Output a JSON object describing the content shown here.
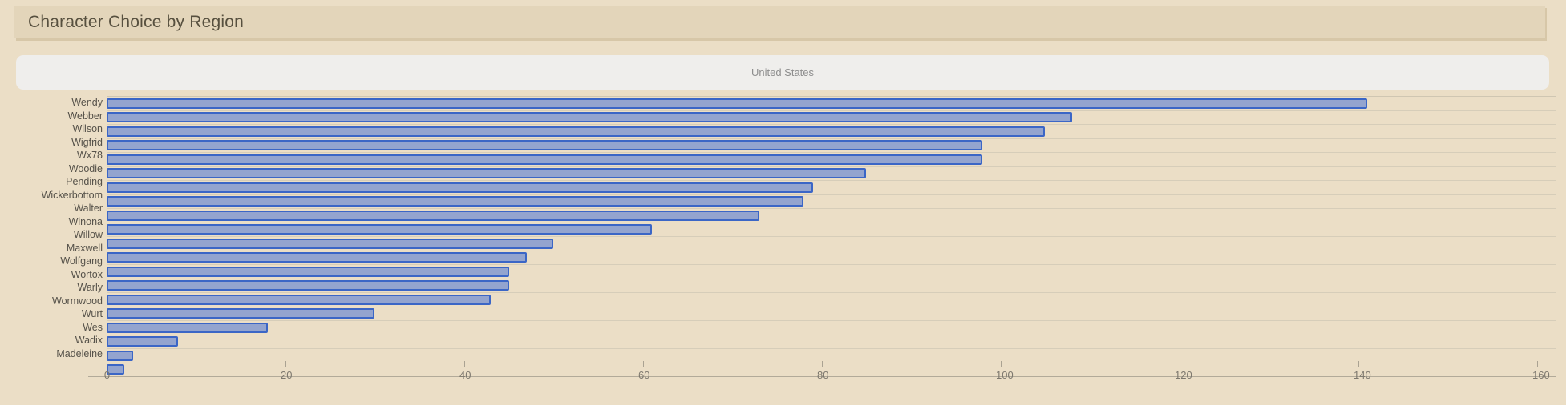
{
  "header": {
    "title": "Character Choice by Region"
  },
  "region_tab": {
    "label": "United States"
  },
  "chart_data": {
    "type": "bar",
    "orientation": "horizontal",
    "title": "Character Choice by Region",
    "group_label": "United States",
    "categories": [
      "Wendy",
      "Webber",
      "Wilson",
      "Wigfrid",
      "Wx78",
      "Woodie",
      "Pending",
      "Wickerbottom",
      "Walter",
      "Winona",
      "Willow",
      "Maxwell",
      "Wolfgang",
      "Wortox",
      "Warly",
      "Wormwood",
      "Wurt",
      "Wes",
      "Wadix",
      "Madeleine"
    ],
    "values": [
      141,
      108,
      105,
      98,
      98,
      85,
      79,
      78,
      73,
      61,
      50,
      47,
      45,
      45,
      43,
      30,
      18,
      8,
      3,
      2
    ],
    "xlabel": "",
    "ylabel": "",
    "xlim": [
      0,
      160
    ],
    "x_ticks": [
      0,
      20,
      40,
      60,
      80,
      100,
      120,
      140,
      160
    ],
    "legend": "none",
    "grid": "horizontal-row-separators",
    "bar_fill_color": "#93a4cf",
    "bar_border_color": "#3b66c6",
    "background_color": "#ebdec6"
  },
  "colors": {
    "page_background": "#ebdec6",
    "header_background": "#e3d5ba",
    "title_text": "#57503f",
    "region_tab_background": "#efeeec",
    "region_tab_text": "#8e8e8e",
    "category_label_text": "#56524a",
    "axis_label_text": "#7d786e",
    "separator_line": "#d6cdb9",
    "axis_line": "#b2aa99"
  }
}
